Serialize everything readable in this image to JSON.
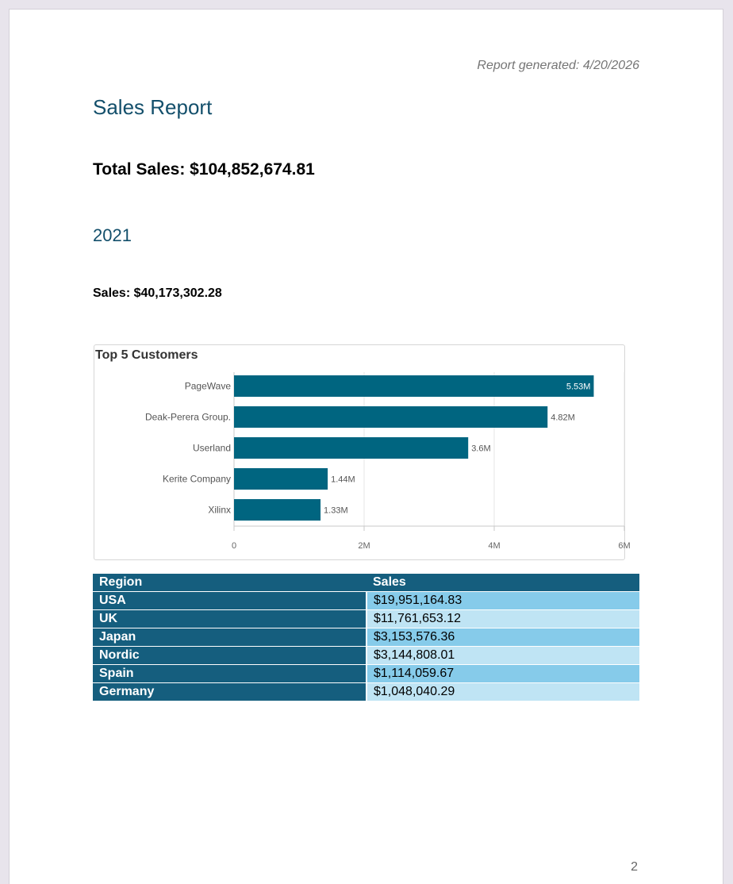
{
  "report": {
    "generated": "Report generated: 4/20/2026",
    "title": "Sales Report",
    "total_sales": "Total Sales: $104,852,674.81",
    "year": "2021",
    "year_sales": "Sales: $40,173,302.28",
    "page_number": "2"
  },
  "chart_data": {
    "type": "bar",
    "orientation": "horizontal",
    "title": "Top 5 Customers",
    "categories": [
      "PageWave",
      "Deak-Perera Group.",
      "Userland",
      "Kerite Company",
      "Xilinx"
    ],
    "values": [
      5530000,
      4820000,
      3600000,
      1440000,
      1330000
    ],
    "value_labels": [
      "5.53M",
      "4.82M",
      "3.6M",
      "1.44M",
      "1.33M"
    ],
    "xlim": [
      0,
      6000000
    ],
    "x_ticks": [
      0,
      2000000,
      4000000,
      6000000
    ],
    "x_tick_labels": [
      "0",
      "2M",
      "4M",
      "6M"
    ],
    "bar_color": "#006580",
    "grid": true
  },
  "table": {
    "headers": [
      "Region",
      "Sales"
    ],
    "rows": [
      {
        "region": "USA",
        "sales": "$19,951,164.83"
      },
      {
        "region": "UK",
        "sales": "$11,761,653.12"
      },
      {
        "region": "Japan",
        "sales": "$3,153,576.36"
      },
      {
        "region": "Nordic",
        "sales": "$3,144,808.01"
      },
      {
        "region": "Spain",
        "sales": "$1,114,059.67"
      },
      {
        "region": "Germany",
        "sales": "$1,048,040.29"
      }
    ]
  }
}
